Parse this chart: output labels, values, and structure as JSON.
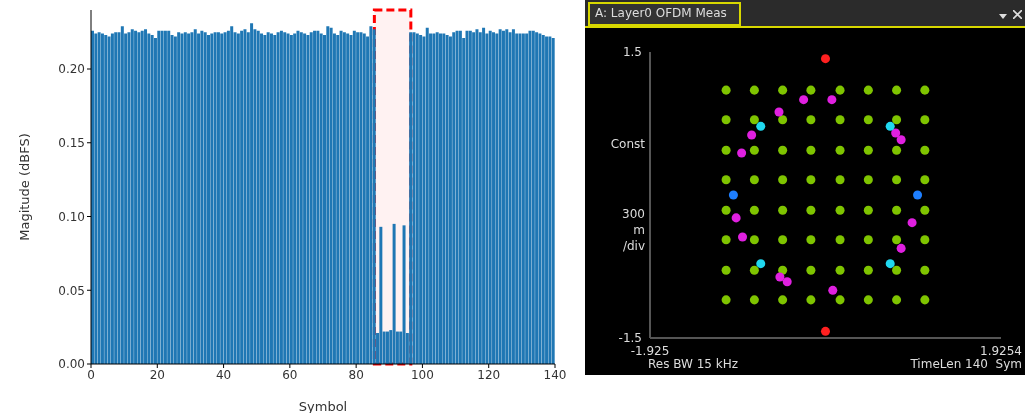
{
  "chart_data": [
    {
      "type": "histogram",
      "xlabel": "Symbol",
      "ylabel": "Magitude (dBFS)",
      "color": "#1f77b4",
      "xlim": [
        0,
        140
      ],
      "ylim": [
        0,
        0.24
      ],
      "xticks": [
        0,
        20,
        40,
        60,
        80,
        100,
        120,
        140
      ],
      "yticks": [
        {
          "value": 0,
          "label": "0.00"
        },
        {
          "value": 0.05,
          "label": "0.05"
        },
        {
          "value": 0.1,
          "label": "0.10"
        },
        {
          "value": 0.15,
          "label": "0.15"
        },
        {
          "value": 0.2,
          "label": "0.20"
        }
      ],
      "bins": [
        0,
        1,
        2,
        3,
        4,
        5,
        6,
        7,
        8,
        9,
        10,
        11,
        12,
        13,
        14,
        15,
        16,
        17,
        18,
        19,
        20,
        21,
        22,
        23,
        24,
        25,
        26,
        27,
        28,
        29,
        30,
        31,
        32,
        33,
        34,
        35,
        36,
        37,
        38,
        39,
        40,
        41,
        42,
        43,
        44,
        45,
        46,
        47,
        48,
        49,
        50,
        51,
        52,
        53,
        54,
        55,
        56,
        57,
        58,
        59,
        60,
        61,
        62,
        63,
        64,
        65,
        66,
        67,
        68,
        69,
        70,
        71,
        72,
        73,
        74,
        75,
        76,
        77,
        78,
        79,
        80,
        81,
        82,
        83,
        84,
        85,
        86,
        87,
        88,
        89,
        90,
        91,
        92,
        93,
        94,
        95,
        96,
        97,
        98,
        99,
        100,
        101,
        102,
        103,
        104,
        105,
        106,
        107,
        108,
        109,
        110,
        111,
        112,
        113,
        114,
        115,
        116,
        117,
        118,
        119,
        120,
        121,
        122,
        123,
        124,
        125,
        126,
        127,
        128,
        129,
        130,
        131,
        132,
        133,
        134,
        135,
        136,
        137,
        138,
        139,
        140
      ],
      "values": [
        0.226,
        0.224,
        0.225,
        0.224,
        0.223,
        0.222,
        0.224,
        0.225,
        0.225,
        0.229,
        0.224,
        0.225,
        0.227,
        0.226,
        0.225,
        0.226,
        0.227,
        0.224,
        0.223,
        0.221,
        0.226,
        0.226,
        0.226,
        0.226,
        0.223,
        0.222,
        0.225,
        0.224,
        0.225,
        0.224,
        0.225,
        0.227,
        0.224,
        0.226,
        0.225,
        0.223,
        0.224,
        0.225,
        0.225,
        0.224,
        0.225,
        0.226,
        0.229,
        0.225,
        0.224,
        0.226,
        0.227,
        0.225,
        0.231,
        0.227,
        0.226,
        0.224,
        0.223,
        0.225,
        0.224,
        0.223,
        0.225,
        0.226,
        0.225,
        0.224,
        0.223,
        0.224,
        0.226,
        0.225,
        0.224,
        0.223,
        0.225,
        0.226,
        0.226,
        0.224,
        0.223,
        0.229,
        0.228,
        0.224,
        0.223,
        0.226,
        0.225,
        0.224,
        0.223,
        0.226,
        0.225,
        0.225,
        0.224,
        0.222,
        0.229,
        0.227,
        0.021,
        0.093,
        0.022,
        0.022,
        0.023,
        0.095,
        0.022,
        0.022,
        0.094,
        0.021,
        0.225,
        0.225,
        0.224,
        0.223,
        0.222,
        0.228,
        0.224,
        0.224,
        0.225,
        0.224,
        0.224,
        0.223,
        0.222,
        0.225,
        0.226,
        0.226,
        0.221,
        0.226,
        0.226,
        0.225,
        0.227,
        0.225,
        0.228,
        0.224,
        0.226,
        0.225,
        0.224,
        0.227,
        0.226,
        0.227,
        0.225,
        0.227,
        0.224,
        0.224,
        0.224,
        0.224,
        0.226,
        0.226,
        0.225,
        0.224,
        0.223,
        0.222,
        0.222,
        0.221
      ],
      "bands": [
        {
          "axis": "x",
          "from": 85.5,
          "to": 96.5,
          "color": "#ff0000"
        }
      ]
    },
    {
      "type": "scatter",
      "title": "A: Layer0 OFDM Meas",
      "ylabel": "Const 300 m /div",
      "xlim": [
        -1.925,
        1.9254
      ],
      "ylim": [
        -1.5,
        1.5
      ],
      "xticks": [
        -1.925,
        1.9254
      ],
      "yticks": [
        -1.5,
        1.5
      ],
      "marker": "circle",
      "annotations": [
        "Res BW 15 kHz",
        "TimeLen 140  Sym"
      ],
      "series": [
        {
          "color": "#7fc400",
          "x": [
            -1.09,
            -0.78,
            -0.47,
            -0.16,
            0.16,
            0.47,
            0.78,
            1.09,
            -1.09,
            -0.78,
            -0.47,
            -0.16,
            0.16,
            0.47,
            0.78,
            1.09,
            -1.09,
            -0.78,
            -0.47,
            -0.16,
            0.16,
            0.47,
            0.78,
            1.09,
            -1.09,
            -0.78,
            -0.47,
            -0.16,
            0.16,
            0.47,
            0.78,
            1.09,
            -1.09,
            -0.78,
            -0.47,
            -0.16,
            0.16,
            0.47,
            0.78,
            1.09,
            -1.09,
            -0.78,
            -0.47,
            -0.16,
            0.16,
            0.47,
            0.78,
            1.09,
            -1.09,
            -0.78,
            -0.47,
            -0.16,
            0.16,
            0.47,
            0.78,
            1.09,
            -1.09,
            -0.78,
            -0.47,
            -0.16,
            0.16,
            0.47,
            0.78,
            1.09
          ],
          "values": [
            1.1,
            1.1,
            1.1,
            1.1,
            1.1,
            1.1,
            1.1,
            1.1,
            0.79,
            0.79,
            0.79,
            0.79,
            0.79,
            0.79,
            0.79,
            0.79,
            0.47,
            0.47,
            0.47,
            0.47,
            0.47,
            0.47,
            0.47,
            0.47,
            0.16,
            0.16,
            0.16,
            0.16,
            0.16,
            0.16,
            0.16,
            0.16,
            -0.16,
            -0.16,
            -0.16,
            -0.16,
            -0.16,
            -0.16,
            -0.16,
            -0.16,
            -0.47,
            -0.47,
            -0.47,
            -0.47,
            -0.47,
            -0.47,
            -0.47,
            -0.47,
            -0.79,
            -0.79,
            -0.79,
            -0.79,
            -0.79,
            -0.79,
            -0.79,
            -0.79,
            -1.1,
            -1.1,
            -1.1,
            -1.1,
            -1.1,
            -1.1,
            -1.1,
            -1.1
          ]
        },
        {
          "color": "#e020e0",
          "x": [
            -0.24,
            0.07,
            -0.51,
            -0.81,
            -0.92,
            0.77,
            0.83,
            -0.98,
            -0.91,
            0.95,
            0.83,
            -0.5,
            -0.42,
            0.08
          ],
          "values": [
            1.0,
            1.0,
            0.87,
            0.63,
            0.44,
            0.65,
            0.58,
            -0.24,
            -0.44,
            -0.29,
            -0.56,
            -0.86,
            -0.91,
            -1.0
          ]
        },
        {
          "color": "#20d8f0",
          "x": [
            -0.71,
            0.71,
            -0.71,
            0.71
          ],
          "values": [
            0.72,
            0.72,
            -0.72,
            -0.72
          ]
        },
        {
          "color": "#1e7fff",
          "x": [
            -1.01,
            1.01
          ],
          "values": [
            0,
            0
          ]
        },
        {
          "color": "#ff2020",
          "x": [
            0,
            0
          ],
          "values": [
            1.43,
            -1.43
          ]
        }
      ]
    }
  ]
}
